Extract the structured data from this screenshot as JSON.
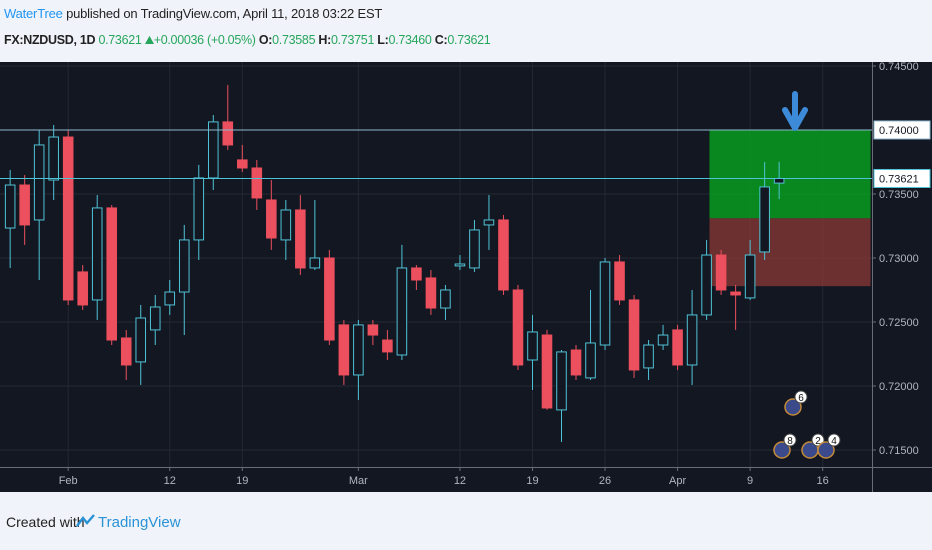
{
  "header": {
    "author": "WaterTree",
    "published": "published on TradingView.com, April 11, 2018 03:22 EST",
    "symbol": "FX:NZDUSD, 1D",
    "last": "0.73621",
    "change": "+0.00036 (+0.05%)",
    "open_label": "O:",
    "open": "0.73585",
    "high_label": "H:",
    "high": "0.73751",
    "low_label": "L:",
    "low": "0.73460",
    "close_label": "C:",
    "close": "0.73621"
  },
  "chart_data": {
    "type": "candlestick",
    "open": [
      0.73234,
      0.7357,
      0.73297,
      0.73609,
      0.73945,
      0.72891,
      0.72672,
      0.73391,
      0.72375,
      0.72188,
      0.72438,
      0.72633,
      0.72734,
      0.73141,
      0.73625,
      0.74063,
      0.73766,
      0.73703,
      0.73453,
      0.73141,
      0.73375,
      0.72922,
      0.73,
      0.72477,
      0.72086,
      0.72477,
      0.72359,
      0.72242,
      0.72922,
      0.72844,
      0.72609,
      0.72938,
      0.72922,
      0.73258,
      0.73297,
      0.7275,
      0.72203,
      0.72398,
      0.71813,
      0.72281,
      0.72063,
      0.7232,
      0.72969,
      0.72672,
      0.72141,
      0.7232,
      0.72438,
      0.72164,
      0.72555,
      0.73023,
      0.72734,
      0.72688,
      0.73047,
      0.73585
    ],
    "high": [
      0.73688,
      0.73648,
      0.74,
      0.74039,
      0.74,
      0.72945,
      0.73492,
      0.73414,
      0.72438,
      0.72633,
      0.72711,
      0.72828,
      0.73258,
      0.73727,
      0.74117,
      0.74352,
      0.73883,
      0.73766,
      0.73609,
      0.73453,
      0.73492,
      0.73453,
      0.73063,
      0.72516,
      0.72516,
      0.72516,
      0.72438,
      0.73102,
      0.72945,
      0.72906,
      0.72789,
      0.73023,
      0.73297,
      0.73492,
      0.73336,
      0.72789,
      0.72555,
      0.72438,
      0.72281,
      0.7232,
      0.7275,
      0.73,
      0.73023,
      0.72711,
      0.72359,
      0.72477,
      0.72477,
      0.7275,
      0.73141,
      0.73063,
      0.72789,
      0.73141,
      0.7375,
      0.73751
    ],
    "low": [
      0.72922,
      0.73102,
      0.72828,
      0.73453,
      0.72633,
      0.72594,
      0.72516,
      0.7232,
      0.72047,
      0.72008,
      0.7232,
      0.72555,
      0.72398,
      0.72984,
      0.73531,
      0.73844,
      0.73672,
      0.73375,
      0.73063,
      0.72984,
      0.72867,
      0.72906,
      0.7232,
      0.72008,
      0.71891,
      0.7232,
      0.72203,
      0.72203,
      0.7275,
      0.72555,
      0.72516,
      0.72906,
      0.72891,
      0.73063,
      0.72711,
      0.72125,
      0.71969,
      0.71813,
      0.71563,
      0.72047,
      0.72047,
      0.72281,
      0.72633,
      0.72063,
      0.72047,
      0.72281,
      0.72125,
      0.72008,
      0.72516,
      0.72711,
      0.72438,
      0.72672,
      0.72984,
      0.7346
    ],
    "close": [
      0.7357,
      0.73258,
      0.73883,
      0.73945,
      0.72672,
      0.72633,
      0.73391,
      0.72359,
      0.72164,
      0.72531,
      0.72617,
      0.72734,
      0.73141,
      0.73625,
      0.74063,
      0.73883,
      0.73703,
      0.73469,
      0.73156,
      0.73375,
      0.72922,
      0.73,
      0.72359,
      0.72086,
      0.72477,
      0.72398,
      0.72266,
      0.72922,
      0.72828,
      0.72609,
      0.7275,
      0.72953,
      0.73219,
      0.73297,
      0.7275,
      0.72164,
      0.72422,
      0.71828,
      0.72266,
      0.72086,
      0.72336,
      0.72969,
      0.72672,
      0.72125,
      0.7232,
      0.72398,
      0.72164,
      0.72555,
      0.73023,
      0.7275,
      0.72711,
      0.73023,
      0.73555,
      0.73621
    ],
    "up_color": "#4fc3d6",
    "down_color": "#ec4f5d",
    "grid": true,
    "xlim": [
      -0.7,
      59.4
    ],
    "xticks": [
      {
        "value": 4,
        "label": "Feb"
      },
      {
        "value": 11,
        "label": "12"
      },
      {
        "value": 16,
        "label": "19"
      },
      {
        "value": 24,
        "label": "Mar"
      },
      {
        "value": 31,
        "label": "12"
      },
      {
        "value": 36,
        "label": "19"
      },
      {
        "value": 41,
        "label": "26"
      },
      {
        "value": 46,
        "label": "Apr"
      },
      {
        "value": 51,
        "label": "9"
      },
      {
        "value": 56,
        "label": "16"
      }
    ],
    "ylim": [
      0.71367,
      0.74531
    ],
    "yticks": [
      {
        "value": 0.745,
        "label": "0.74500"
      },
      {
        "value": 0.735,
        "label": "0.73500"
      },
      {
        "value": 0.73,
        "label": "0.73000"
      },
      {
        "value": 0.725,
        "label": "0.72500"
      },
      {
        "value": 0.72,
        "label": "0.72000"
      },
      {
        "value": 0.715,
        "label": "0.71500"
      }
    ],
    "hlines": [
      {
        "value": 0.74,
        "label": "0.74000"
      },
      {
        "value": 0.73621,
        "label": "0.73621"
      }
    ],
    "position": {
      "start": 48.2,
      "end": 59.3,
      "target": 0.74,
      "entry": 0.7331,
      "stop": 0.7278
    },
    "events": [
      {
        "label": "6"
      },
      {
        "label": "8"
      },
      {
        "label": "2"
      },
      {
        "label": "4"
      }
    ]
  },
  "footer": {
    "created": "Created with",
    "brand": "TradingView"
  }
}
